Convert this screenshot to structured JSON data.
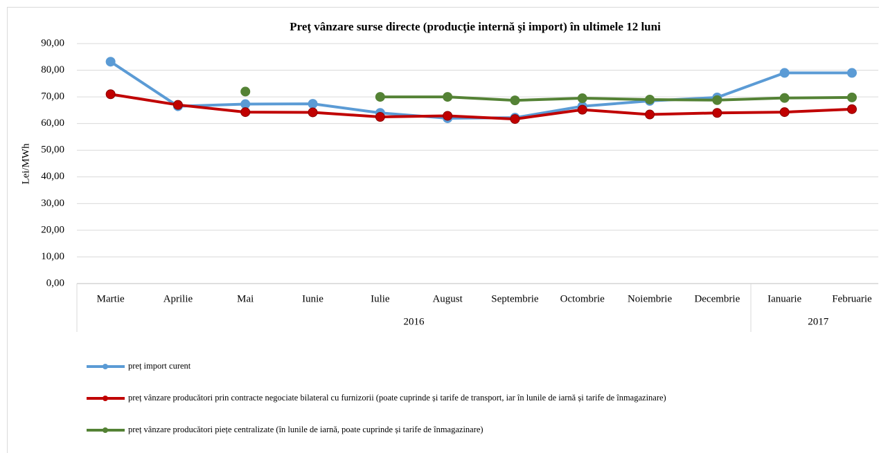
{
  "chart_data": {
    "type": "line",
    "title": "Preţ vânzare surse directe (producţie internă şi import) în ultimele 12 luni",
    "y_label": "Lei/MWh",
    "categories": [
      "Martie",
      "Aprilie",
      "Mai",
      "Iunie",
      "Iulie",
      "August",
      "Septembrie",
      "Octombrie",
      "Noiembrie",
      "Decembrie",
      "Ianuarie",
      "Februarie"
    ],
    "x_groups": [
      {
        "label": "2016",
        "count": 10
      },
      {
        "label": "2017",
        "count": 2
      }
    ],
    "series": [
      {
        "name": "preț import curent",
        "color": "#5b9bd5",
        "values": [
          83.2,
          66.5,
          67.3,
          67.4,
          64.0,
          62.0,
          62.2,
          66.5,
          68.5,
          69.8,
          79.0,
          79.0
        ]
      },
      {
        "name": "preț vânzare producători prin contracte negociate bilateral cu furnizorii (poate cuprinde și tarife de transport, iar în lunile de iarnă și tarife de înmagazinare)",
        "color": "#c00000",
        "values": [
          71.0,
          67.0,
          64.3,
          64.2,
          62.5,
          62.9,
          61.7,
          65.2,
          63.4,
          64.0,
          64.3,
          65.4
        ]
      },
      {
        "name": "preț vânzare producători piețe centralizate (în lunile de iarnă, poate cuprinde și tarife de înmagazinare)",
        "color": "#548235",
        "values": [
          null,
          null,
          72.0,
          null,
          70.0,
          70.0,
          68.7,
          69.5,
          69.0,
          68.8,
          69.6,
          69.8
        ]
      }
    ],
    "ylim": [
      0,
      90
    ],
    "yticks": [
      {
        "value": 0,
        "label": "0,00"
      },
      {
        "value": 10,
        "label": "10,00"
      },
      {
        "value": 20,
        "label": "20,00"
      },
      {
        "value": 30,
        "label": "30,00"
      },
      {
        "value": 40,
        "label": "40,00"
      },
      {
        "value": 50,
        "label": "50,00"
      },
      {
        "value": 60,
        "label": "60,00"
      },
      {
        "value": 70,
        "label": "70,00"
      },
      {
        "value": 80,
        "label": "80,00"
      },
      {
        "value": 90,
        "label": "90,00"
      }
    ],
    "grid": true
  }
}
